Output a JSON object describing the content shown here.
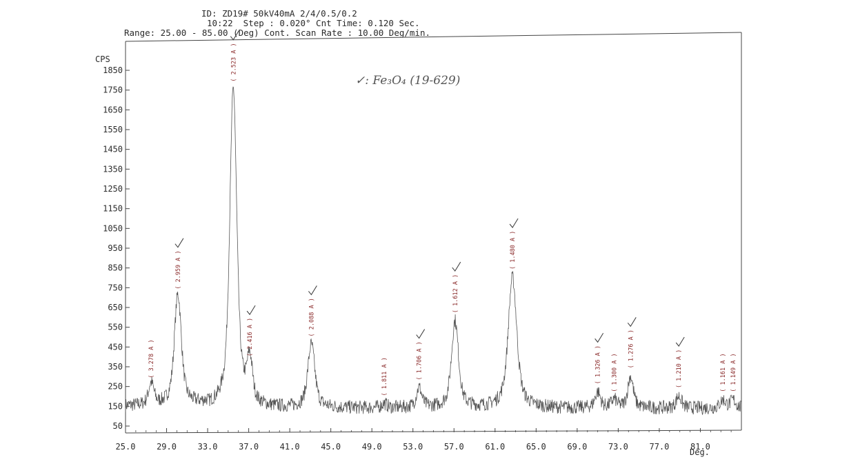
{
  "header": {
    "line1": "ID: ZD19# 50kV40mA 2/4/0.5/0.2",
    "line2": "10:22  Step : 0.020° Cnt Time: 0.120 Sec.",
    "line3": "Range: 25.00 - 85.00 (Deg) Cont. Scan Rate : 10.00 Deg/min."
  },
  "annotation": {
    "legend_text": "✓: Fe₃O₄ (19-629)"
  },
  "chart_data": {
    "type": "line",
    "title": "",
    "ylabel": "CPS",
    "xlabel": "Deg.",
    "xlim": [
      25.0,
      85.0
    ],
    "ylim": [
      0,
      1900
    ],
    "y_ticks": [
      50,
      150,
      250,
      350,
      450,
      550,
      650,
      750,
      850,
      950,
      1050,
      1150,
      1250,
      1350,
      1450,
      1550,
      1650,
      1750,
      1850
    ],
    "y_tick_labels": [
      "50",
      "150",
      "250",
      "350",
      "450",
      "550",
      "650",
      "750",
      "850",
      "950",
      "1050",
      "1150",
      "1250",
      "1350",
      "1450",
      "1550",
      "1650",
      "1750",
      "1850"
    ],
    "x_ticks": [
      25,
      29,
      33,
      37,
      41,
      45,
      49,
      53,
      57,
      61,
      65,
      69,
      73,
      77,
      81
    ],
    "x_tick_labels": [
      "25.0",
      "29.0",
      "33.0",
      "37.0",
      "41.0",
      "45.0",
      "49.0",
      "53.0",
      "57.0",
      "61.0",
      "65.0",
      "69.0",
      "73.0",
      "77.0",
      "81.0"
    ],
    "grid": false,
    "baseline": 140,
    "peaks": [
      {
        "x": 27.5,
        "y": 250,
        "label": "( 3.278 A )",
        "marked": false
      },
      {
        "x": 30.1,
        "y": 700,
        "label": "( 2.959 A )",
        "marked": true
      },
      {
        "x": 35.5,
        "y": 1750,
        "label": "( 2.523 A )",
        "marked": true
      },
      {
        "x": 37.1,
        "y": 360,
        "label": "( 2.416 A )",
        "marked": true
      },
      {
        "x": 43.1,
        "y": 460,
        "label": "( 2.088 A )",
        "marked": true
      },
      {
        "x": 50.2,
        "y": 160,
        "label": "( 1.811 A )",
        "marked": false
      },
      {
        "x": 53.6,
        "y": 240,
        "label": "( 1.706 A )",
        "marked": true
      },
      {
        "x": 57.1,
        "y": 580,
        "label": "( 1.612 A )",
        "marked": true
      },
      {
        "x": 62.7,
        "y": 800,
        "label": "( 1.480 A )",
        "marked": true
      },
      {
        "x": 71.0,
        "y": 220,
        "label": "( 1.326 A )",
        "marked": true
      },
      {
        "x": 72.6,
        "y": 180,
        "label": "( 1.300 A )",
        "marked": false
      },
      {
        "x": 74.2,
        "y": 300,
        "label": "( 1.276 A )",
        "marked": true
      },
      {
        "x": 78.9,
        "y": 200,
        "label": "( 1.210 A )",
        "marked": true
      },
      {
        "x": 83.2,
        "y": 180,
        "label": "( 1.161 A )",
        "marked": false
      },
      {
        "x": 84.2,
        "y": 180,
        "label": "( 1.149 A )",
        "marked": false
      }
    ]
  }
}
